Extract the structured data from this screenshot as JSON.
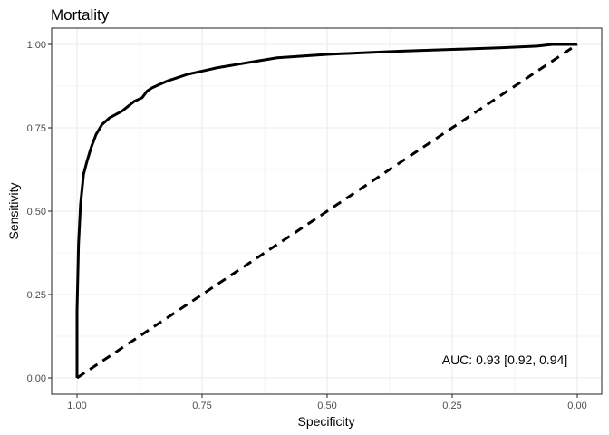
{
  "chart_data": {
    "type": "line",
    "title": "Mortality",
    "xlabel": "Specificity",
    "ylabel": "Sensitivity",
    "x_reversed": true,
    "xlim": [
      1.0,
      0.0
    ],
    "ylim": [
      0.0,
      1.0
    ],
    "x_ticks": [
      "1.00",
      "0.75",
      "0.50",
      "0.25",
      "0.00"
    ],
    "y_ticks": [
      "0.00",
      "0.25",
      "0.50",
      "0.75",
      "1.00"
    ],
    "grid": true,
    "annotation": "AUC: 0.93 [0.92, 0.94]",
    "series": [
      {
        "style": "solid",
        "points": [
          [
            1.0,
            0.0
          ],
          [
            1.0,
            0.2
          ],
          [
            0.997,
            0.4
          ],
          [
            0.993,
            0.52
          ],
          [
            0.987,
            0.61
          ],
          [
            0.98,
            0.65
          ],
          [
            0.972,
            0.69
          ],
          [
            0.962,
            0.73
          ],
          [
            0.95,
            0.76
          ],
          [
            0.935,
            0.78
          ],
          [
            0.91,
            0.8
          ],
          [
            0.885,
            0.83
          ],
          [
            0.87,
            0.84
          ],
          [
            0.86,
            0.86
          ],
          [
            0.85,
            0.87
          ],
          [
            0.835,
            0.88
          ],
          [
            0.82,
            0.89
          ],
          [
            0.8,
            0.9
          ],
          [
            0.78,
            0.91
          ],
          [
            0.75,
            0.92
          ],
          [
            0.72,
            0.93
          ],
          [
            0.68,
            0.94
          ],
          [
            0.64,
            0.95
          ],
          [
            0.6,
            0.96
          ],
          [
            0.55,
            0.965
          ],
          [
            0.5,
            0.97
          ],
          [
            0.43,
            0.975
          ],
          [
            0.35,
            0.98
          ],
          [
            0.25,
            0.985
          ],
          [
            0.15,
            0.99
          ],
          [
            0.08,
            0.995
          ],
          [
            0.05,
            1.0
          ],
          [
            0.0,
            1.0
          ]
        ]
      },
      {
        "style": "dashed",
        "points": [
          [
            1.0,
            0.0
          ],
          [
            0.0,
            1.0
          ]
        ]
      }
    ]
  },
  "colors": {
    "line": "#000000",
    "grid": "#ebebeb",
    "panel_border": "#333333",
    "tick_label": "#4d4d4d"
  }
}
